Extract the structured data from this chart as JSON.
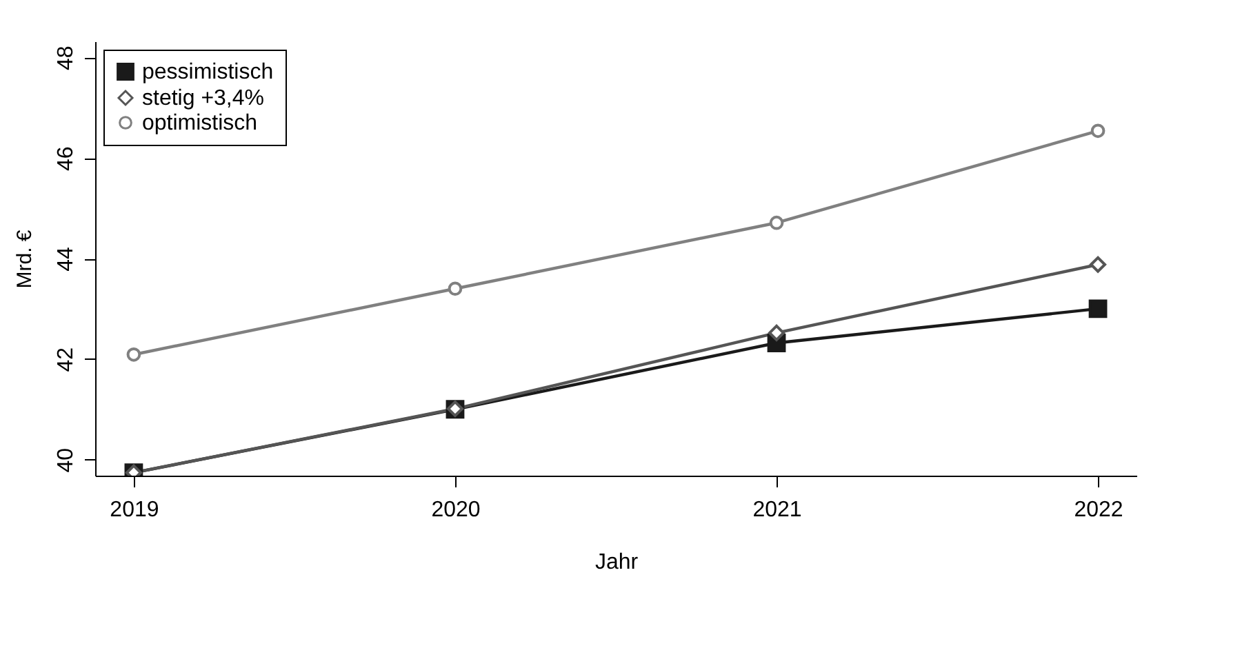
{
  "chart_data": {
    "type": "line",
    "xlabel": "Jahr",
    "ylabel": "Mrd. €",
    "x": [
      2019,
      2020,
      2021,
      2022
    ],
    "series": [
      {
        "name": "pessimistisch",
        "color": "#1a1a1a",
        "marker": "square",
        "values": [
          39.74,
          41.0,
          42.32,
          43.0
        ]
      },
      {
        "name": "stetig +3,4%",
        "color": "#555555",
        "marker": "diamond",
        "values": [
          39.74,
          41.01,
          42.52,
          43.88
        ]
      },
      {
        "name": "optimistisch",
        "color": "#808080",
        "marker": "circle",
        "values": [
          42.09,
          43.4,
          44.71,
          46.54
        ]
      }
    ],
    "xlim": [
      2018.88,
      2022.12
    ],
    "xticks": [
      2019,
      2020,
      2021,
      2022
    ],
    "ylim": [
      39.68,
      48.32
    ],
    "yticks": [
      40,
      42,
      44,
      46,
      48
    ],
    "grid": false,
    "legend": "top left",
    "line_style": "solid"
  }
}
